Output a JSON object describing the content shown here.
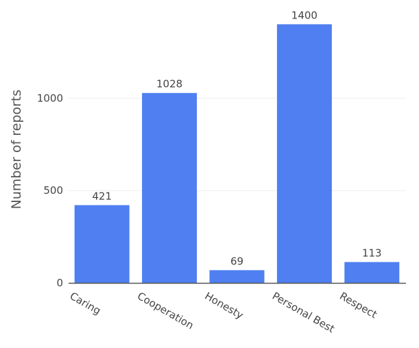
{
  "chart_data": {
    "type": "bar",
    "categories": [
      "Caring",
      "Cooperation",
      "Honesty",
      "Personal Best",
      "Respect"
    ],
    "values": [
      421,
      1028,
      69,
      1400,
      113
    ],
    "value_labels": [
      "421",
      "1028",
      "69",
      "1400",
      "113"
    ],
    "title": "",
    "xlabel": "",
    "ylabel": "Number of reports",
    "ylim": [
      0,
      1400
    ],
    "yticks": [
      0,
      500,
      1000
    ],
    "ytick_labels": [
      "0",
      "500",
      "1000"
    ],
    "grid": true,
    "legend": "none",
    "colors": {
      "bar": "#4f7ff0",
      "grid": "#eeeeee",
      "axis": "#555555"
    }
  }
}
